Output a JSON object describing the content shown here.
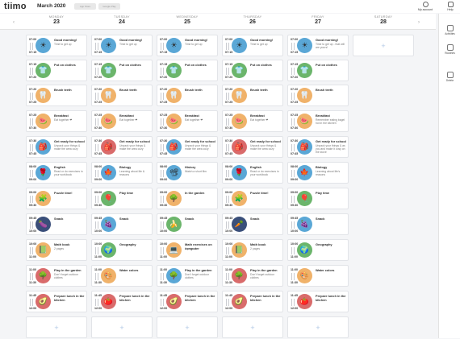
{
  "app": {
    "logo": "tiimo",
    "month": "March 2020",
    "store1": "App Store",
    "store2": "Google Play"
  },
  "topnav": {
    "account": "My account",
    "help": "Help"
  },
  "nav": {
    "prev": "‹",
    "next": "›",
    "add": "+"
  },
  "sidebar": [
    {
      "label": "Activities",
      "icon": "activities-icon"
    },
    {
      "label": "Routines",
      "icon": "routines-icon"
    },
    {
      "label": "Delete",
      "icon": "trash-icon"
    }
  ],
  "days": [
    {
      "name": "MONDAY",
      "date": "23"
    },
    {
      "name": "TUESDAY",
      "date": "24"
    },
    {
      "name": "WEDNESDAY",
      "date": "25"
    },
    {
      "name": "THURSDAY",
      "date": "26"
    },
    {
      "name": "FRIDAY",
      "date": "27"
    },
    {
      "name": "SATURDAY",
      "date": "28"
    }
  ],
  "schedule": [
    [
      {
        "start": "07:00",
        "end": "07:15",
        "title": "Good morning!",
        "sub": "Time to get up",
        "icon": "☀",
        "color": "#5aa7d6"
      },
      {
        "start": "07:15",
        "end": "07:20",
        "title": "Put on clothes",
        "sub": "",
        "icon": "👕",
        "color": "#6bb56b"
      },
      {
        "start": "07:20",
        "end": "07:25",
        "title": "Brush teeth",
        "sub": "",
        "icon": "🦷",
        "color": "#f0b26a"
      },
      {
        "start": "07:25",
        "end": "07:30",
        "title": "Breakfast",
        "sub": "Eat together ❤",
        "icon": "🍉",
        "color": "#f0b26a"
      },
      {
        "start": "07:30",
        "end": "07:45",
        "title": "Get ready for school",
        "sub": "Unpack your things & make the area cozy",
        "icon": "🎒",
        "color": "#5aa7d6"
      },
      {
        "start": "08:00",
        "end": "09:00",
        "title": "English",
        "sub": "Read or do exercises in your workbook",
        "icon": "🌹",
        "color": "#5aa7d6"
      },
      {
        "start": "09:00",
        "end": "09:30",
        "title": "Puzzle time!",
        "sub": "",
        "icon": "🧩",
        "color": "#f0b26a"
      },
      {
        "start": "09:45",
        "end": "10:00",
        "title": "Snack",
        "sub": "",
        "icon": "🍆",
        "color": "#3a4f7a"
      },
      {
        "start": "10:00",
        "end": "11:00",
        "title": "Math book",
        "sub": "2 pages",
        "icon": "📗",
        "color": "#f0b26a"
      },
      {
        "start": "11:00",
        "end": "11:30",
        "title": "Play in the garden",
        "sub": "Don't forget outdoor clothes",
        "icon": "🌳",
        "color": "#d96b6b"
      },
      {
        "start": "11:45",
        "end": "12:00",
        "title": "Prepare lunch in the kitchen",
        "sub": "",
        "icon": "🥑",
        "color": "#d96b6b"
      }
    ],
    [
      {
        "start": "07:00",
        "end": "07:15",
        "title": "Good morning!",
        "sub": "Time to get up",
        "icon": "☀",
        "color": "#5aa7d6"
      },
      {
        "start": "07:15",
        "end": "07:20",
        "title": "Put on clothes",
        "sub": "",
        "icon": "👕",
        "color": "#6bb56b"
      },
      {
        "start": "07:20",
        "end": "07:25",
        "title": "Brush teeth",
        "sub": "",
        "icon": "🦷",
        "color": "#f0b26a"
      },
      {
        "start": "07:25",
        "end": "07:30",
        "title": "Breakfast",
        "sub": "Eat together ❤",
        "icon": "🍉",
        "color": "#f0b26a"
      },
      {
        "start": "07:30",
        "end": "07:45",
        "title": "Get ready for school",
        "sub": "Unpack your things & make the area cozy",
        "icon": "🎒",
        "color": "#d96b6b"
      },
      {
        "start": "08:00",
        "end": "09:00",
        "title": "Biology",
        "sub": "Learning about life & reasons",
        "icon": "🍁",
        "color": "#5aa7d6"
      },
      {
        "start": "09:00",
        "end": "09:30",
        "title": "Play time",
        "sub": "",
        "icon": "🎈",
        "color": "#6bb56b"
      },
      {
        "start": "09:45",
        "end": "10:00",
        "title": "Snack",
        "sub": "",
        "icon": "🍇",
        "color": "#5aa7d6"
      },
      {
        "start": "10:00",
        "end": "11:00",
        "title": "Geography",
        "sub": "",
        "icon": "🌍",
        "color": "#6bb56b"
      },
      {
        "start": "11:00",
        "end": "11:30",
        "title": "Water colors",
        "sub": "",
        "icon": "🎨",
        "color": "#f0b26a"
      },
      {
        "start": "11:45",
        "end": "12:00",
        "title": "Prepare lunch in the kitchen",
        "sub": "",
        "icon": "🍅",
        "color": "#d96b6b"
      }
    ],
    [
      {
        "start": "07:00",
        "end": "07:15",
        "title": "Good morning!",
        "sub": "Time to get up",
        "icon": "☀",
        "color": "#5aa7d6"
      },
      {
        "start": "07:15",
        "end": "07:20",
        "title": "Put on clothes",
        "sub": "",
        "icon": "👕",
        "color": "#6bb56b"
      },
      {
        "start": "07:20",
        "end": "07:25",
        "title": "Brush teeth",
        "sub": "",
        "icon": "🦷",
        "color": "#f0b26a"
      },
      {
        "start": "07:25",
        "end": "07:30",
        "title": "Breakfast",
        "sub": "Eat together ❤",
        "icon": "🍉",
        "color": "#f0b26a"
      },
      {
        "start": "07:30",
        "end": "07:45",
        "title": "Get ready for school",
        "sub": "Unpack your things & make the area cozy",
        "icon": "🎒",
        "color": "#5aa7d6"
      },
      {
        "start": "08:00",
        "end": "09:00",
        "title": "History",
        "sub": "Watch a short film",
        "icon": "📽",
        "color": "#5aa7d6"
      },
      {
        "start": "09:00",
        "end": "09:30",
        "title": "In the garden",
        "sub": "",
        "icon": "🌳",
        "color": "#f0b26a"
      },
      {
        "start": "09:45",
        "end": "10:00",
        "title": "Snack",
        "sub": "",
        "icon": "🍌",
        "color": "#6bb56b"
      },
      {
        "start": "10:00",
        "end": "11:00",
        "title": "Math exercises on computer",
        "sub": "2 pages",
        "icon": "💻",
        "color": "#f0b26a"
      },
      {
        "start": "11:00",
        "end": "11:30",
        "title": "Play in the garden",
        "sub": "Don't forget outdoor clothes",
        "icon": "🌳",
        "color": "#5aa7d6"
      },
      {
        "start": "11:45",
        "end": "12:00",
        "title": "Prepare lunch in the kitchen",
        "sub": "",
        "icon": "🥑",
        "color": "#d96b6b"
      }
    ],
    [
      {
        "start": "07:00",
        "end": "07:15",
        "title": "Good morning!",
        "sub": "Time to get up",
        "icon": "☀",
        "color": "#5aa7d6"
      },
      {
        "start": "07:15",
        "end": "07:20",
        "title": "Put on clothes",
        "sub": "",
        "icon": "👕",
        "color": "#6bb56b"
      },
      {
        "start": "07:20",
        "end": "07:25",
        "title": "Brush teeth",
        "sub": "",
        "icon": "🦷",
        "color": "#f0b26a"
      },
      {
        "start": "07:25",
        "end": "07:30",
        "title": "Breakfast",
        "sub": "Eat together ❤",
        "icon": "🍉",
        "color": "#f0b26a"
      },
      {
        "start": "07:30",
        "end": "07:45",
        "title": "Get ready for school",
        "sub": "Unpack your things & make the area cozy",
        "icon": "🎒",
        "color": "#d96b6b"
      },
      {
        "start": "08:00",
        "end": "09:00",
        "title": "English",
        "sub": "Read or do exercises in your workbook",
        "icon": "🌹",
        "color": "#5aa7d6"
      },
      {
        "start": "09:00",
        "end": "09:30",
        "title": "Puzzle time!",
        "sub": "",
        "icon": "🧩",
        "color": "#f0b26a"
      },
      {
        "start": "09:45",
        "end": "10:00",
        "title": "Snack",
        "sub": "",
        "icon": "🥕",
        "color": "#3a4f7a"
      },
      {
        "start": "10:00",
        "end": "11:00",
        "title": "Math book",
        "sub": "2 pages",
        "icon": "📗",
        "color": "#f0b26a"
      },
      {
        "start": "11:00",
        "end": "11:30",
        "title": "Play in the garden",
        "sub": "Don't forget outdoor clothes",
        "icon": "🌳",
        "color": "#d96b6b"
      },
      {
        "start": "11:45",
        "end": "12:00",
        "title": "Prepare lunch in the kitchen",
        "sub": "",
        "icon": "🥑",
        "color": "#d96b6b"
      }
    ],
    [
      {
        "start": "07:00",
        "end": "07:15",
        "title": "Good morning!",
        "sub": "Time to get up - that will are yours!",
        "icon": "☀",
        "color": "#5aa7d6"
      },
      {
        "start": "07:15",
        "end": "07:20",
        "title": "Put on clothes",
        "sub": "",
        "icon": "👕",
        "color": "#6bb56b"
      },
      {
        "start": "07:20",
        "end": "07:25",
        "title": "Brush teeth",
        "sub": "",
        "icon": "🦷",
        "color": "#f0b26a"
      },
      {
        "start": "07:25",
        "end": "07:30",
        "title": "Breakfast",
        "sub": "Remember eating bagel hot in the kitchen",
        "icon": "🍉",
        "color": "#f0b26a"
      },
      {
        "start": "07:30",
        "end": "07:45",
        "title": "Get ready for school",
        "sub": "Unpack your things & as you and make it cosy on the stove",
        "icon": "🎒",
        "color": "#5aa7d6"
      },
      {
        "start": "08:00",
        "end": "09:00",
        "title": "Biology",
        "sub": "Learning about life's reasons",
        "icon": "🍁",
        "color": "#5aa7d6"
      },
      {
        "start": "09:00",
        "end": "09:30",
        "title": "Play time",
        "sub": "",
        "icon": "🎈",
        "color": "#6bb56b"
      },
      {
        "start": "09:45",
        "end": "10:00",
        "title": "Snack",
        "sub": "",
        "icon": "🍇",
        "color": "#5aa7d6"
      },
      {
        "start": "10:00",
        "end": "11:00",
        "title": "Geography",
        "sub": "",
        "icon": "🌍",
        "color": "#6bb56b"
      },
      {
        "start": "11:00",
        "end": "11:30",
        "title": "Water colors",
        "sub": "",
        "icon": "🎨",
        "color": "#f0b26a"
      },
      {
        "start": "11:45",
        "end": "12:00",
        "title": "Prepare lunch in the kitchen",
        "sub": "",
        "icon": "🍅",
        "color": "#d96b6b"
      }
    ],
    []
  ]
}
